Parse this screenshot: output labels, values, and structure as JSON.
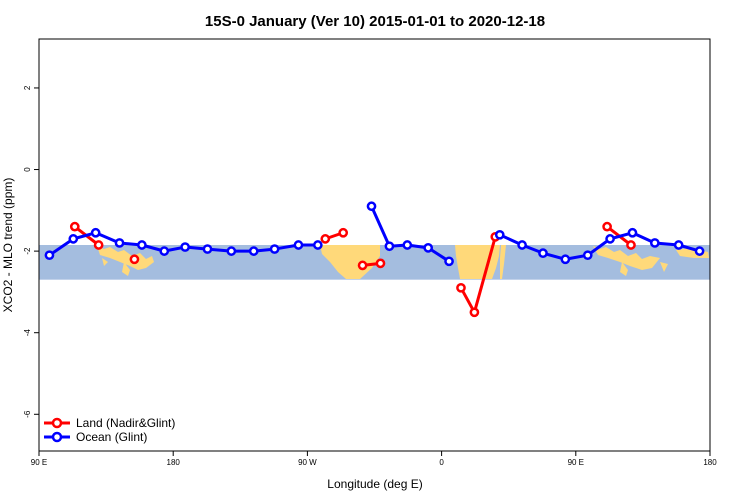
{
  "chart_data": {
    "type": "line",
    "title": "15S-0 January (Ver 10)   2015-01-01 to 2020-12-18",
    "xlabel": "Longitude (deg E)",
    "ylabel": "XCO2 - MLO trend (ppm)",
    "xlim": [
      90,
      540
    ],
    "ylim": [
      -6.9,
      3.2
    ],
    "x_ticks": [
      {
        "value": 90,
        "label": "90 E"
      },
      {
        "value": 180,
        "label": "180"
      },
      {
        "value": 270,
        "label": "90 W"
      },
      {
        "value": 360,
        "label": "0"
      },
      {
        "value": 450,
        "label": "90 E"
      },
      {
        "value": 540,
        "label": "180"
      }
    ],
    "y_ticks": [
      {
        "value": 2,
        "label": "2"
      },
      {
        "value": 0,
        "label": "0"
      },
      {
        "value": -2,
        "label": "-2"
      },
      {
        "value": -4,
        "label": "-4"
      },
      {
        "value": -6,
        "label": "-6"
      }
    ],
    "band": {
      "ymin": -2.7,
      "ymax": -1.85,
      "color": "#a4bddf",
      "land_color": "#ffd97a"
    },
    "series": [
      {
        "name": "Land (Nadir&Glint)",
        "color": "#ff0000",
        "segments": [
          {
            "x": [
              114,
              130
            ],
            "y": [
              -1.4,
              -1.85
            ]
          },
          {
            "x": [
              154
            ],
            "y": [
              -2.2
            ]
          },
          {
            "x": [
              282,
              294
            ],
            "y": [
              -1.7,
              -1.55
            ]
          },
          {
            "x": [
              307,
              319
            ],
            "y": [
              -2.35,
              -2.3
            ]
          },
          {
            "x": [
              373,
              382,
              396
            ],
            "y": [
              -2.9,
              -3.5,
              -1.65
            ]
          },
          {
            "x": [
              471,
              487
            ],
            "y": [
              -1.4,
              -1.85
            ]
          }
        ]
      },
      {
        "name": "Ocean (Glint)",
        "color": "#0000ff",
        "segments": [
          {
            "x": [
              97,
              113,
              128,
              144,
              159,
              174,
              188,
              203,
              219,
              234,
              248,
              264,
              277
            ],
            "y": [
              -2.1,
              -1.7,
              -1.55,
              -1.8,
              -1.85,
              -2.0,
              -1.9,
              -1.95,
              -2.0,
              -2.0,
              -1.95,
              -1.85,
              -1.85
            ]
          },
          {
            "x": [
              313,
              325,
              337,
              351,
              365
            ],
            "y": [
              -0.9,
              -1.88,
              -1.85,
              -1.92,
              -2.25
            ]
          },
          {
            "x": [
              399,
              414,
              428,
              443,
              458,
              473,
              488,
              503,
              519,
              533
            ],
            "y": [
              -1.6,
              -1.85,
              -2.05,
              -2.2,
              -2.1,
              -1.7,
              -1.55,
              -1.8,
              -1.85,
              -2.0
            ]
          }
        ]
      }
    ],
    "legend": {
      "location": "bottom-left",
      "entries": [
        "Land (Nadir&Glint)",
        "Ocean (Glint)"
      ]
    }
  }
}
